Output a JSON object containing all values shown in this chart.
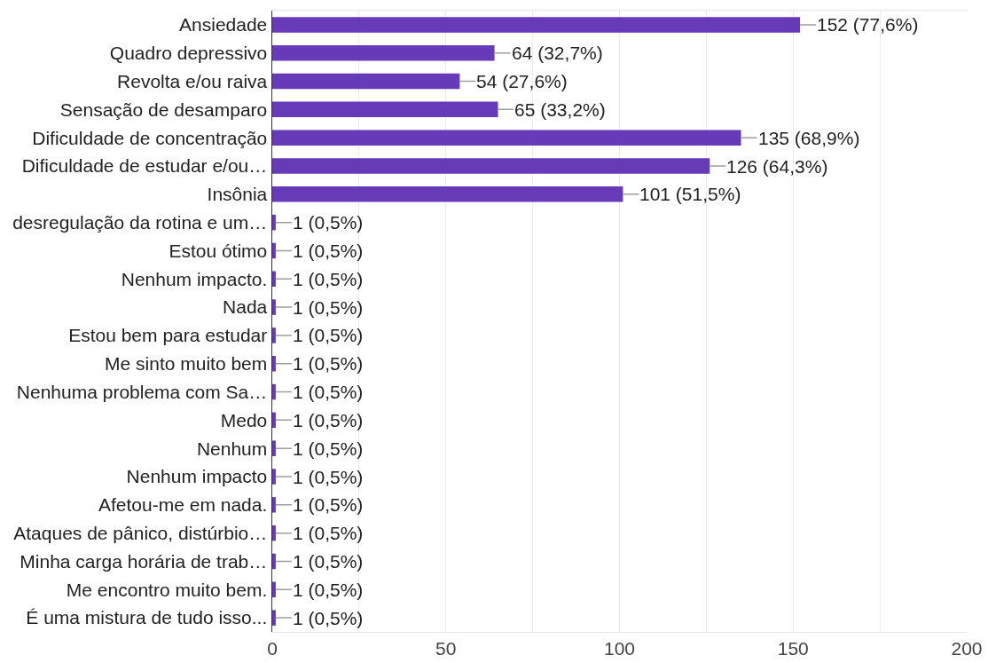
{
  "chart_data": {
    "type": "bar",
    "orientation": "horizontal",
    "categories": [
      "Ansiedade",
      "Quadro depressivo",
      "Revolta e/ou raiva",
      "Sensação de desamparo",
      "Dificuldade de concentração",
      "Dificuldade de estudar e/ou…",
      "Insônia",
      "desregulação da rotina e um…",
      "Estou ótimo",
      "Nenhum impacto.",
      "Nada",
      "Estou bem para estudar",
      "Me sinto muito bem",
      "Nenhuma problema com Sa…",
      "Medo",
      "Nenhum",
      "Nenhum impacto",
      "Afetou-me em nada.",
      "Ataques de pânico, distúrbio…",
      "Minha carga horária de trab…",
      "Me encontro muito bem.",
      "É uma mistura de tudo isso..."
    ],
    "values": [
      152,
      64,
      54,
      65,
      135,
      126,
      101,
      1,
      1,
      1,
      1,
      1,
      1,
      1,
      1,
      1,
      1,
      1,
      1,
      1,
      1,
      1
    ],
    "value_labels": [
      "152 (77,6%)",
      "64 (32,7%)",
      "54 (27,6%)",
      "65 (33,2%)",
      "135 (68,9%)",
      "126 (64,3%)",
      "101 (51,5%)",
      "1 (0,5%)",
      "1 (0,5%)",
      "1 (0,5%)",
      "1 (0,5%)",
      "1 (0,5%)",
      "1 (0,5%)",
      "1 (0,5%)",
      "1 (0,5%)",
      "1 (0,5%)",
      "1 (0,5%)",
      "1 (0,5%)",
      "1 (0,5%)",
      "1 (0,5%)",
      "1 (0,5%)",
      "1 (0,5%)"
    ],
    "color": "#673ab7",
    "xlim": [
      0,
      200
    ],
    "xticks": [
      0,
      {
        "value": 25,
        "label": null
      },
      50,
      {
        "value": 75,
        "label": null
      },
      100,
      {
        "value": 125,
        "label": null
      },
      150,
      {
        "value": 175,
        "label": null
      },
      200
    ],
    "grid": "x"
  }
}
